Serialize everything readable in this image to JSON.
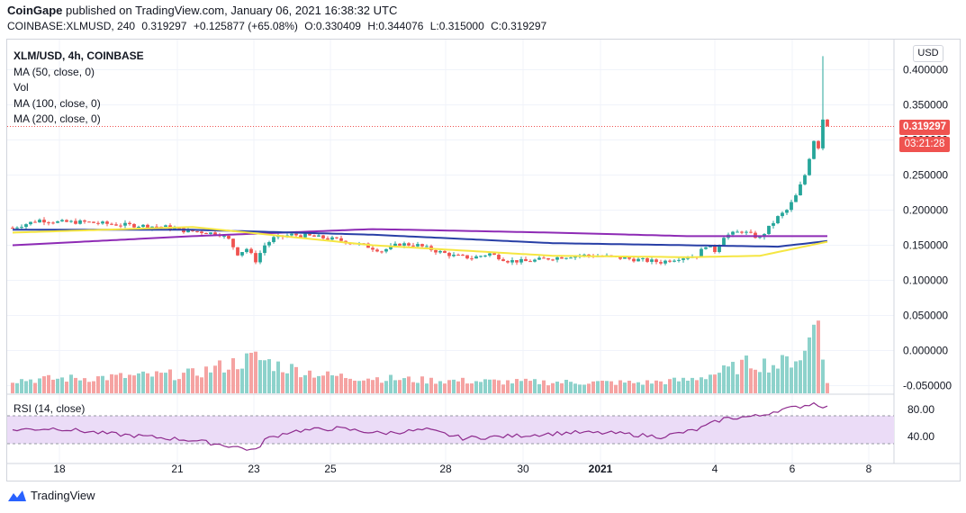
{
  "header": {
    "publisher": "CoinGape",
    "published_text": "published on TradingView.com, January 06, 2021 16:38:32 UTC",
    "symbol_line": "COINBASE:XLMUSD, 240",
    "price": "0.319297",
    "change": "+0.125877 (+65.08%)",
    "open": "O:0.330409",
    "high": "H:0.344076",
    "low": "L:0.315000",
    "close": "C:0.319297"
  },
  "legend": {
    "symbol": "XLM/USD, 4h, COINBASE",
    "ma50": "MA (50, close, 0)",
    "vol": "Vol",
    "ma100": "MA (100, close, 0)",
    "ma200": "MA (200, close, 0)"
  },
  "rsi_label": "RSI (14, close)",
  "currency_button": "USD",
  "last_price_tag": "0.319297",
  "countdown_tag": "03:21:28",
  "footer": {
    "brand": "TradingView"
  },
  "colors": {
    "up": "#26a69a",
    "down": "#ef5350",
    "ma50": "#f5e642",
    "ma100": "#283fa6",
    "ma200": "#8e2bb5",
    "rsi_line": "#8e2b8e",
    "rsi_band": "#ebdcf7"
  },
  "chart_data": {
    "type": "candlestick",
    "symbol": "XLM/USD",
    "interval": "4h",
    "exchange": "COINBASE",
    "price_axis_ticks": [
      "0.400000",
      "0.350000",
      "0.300000",
      "0.250000",
      "0.200000",
      "0.150000",
      "0.100000",
      "0.050000",
      "0.000000",
      "-0.050000"
    ],
    "price_axis_values": [
      0.4,
      0.35,
      0.3,
      0.25,
      0.2,
      0.15,
      0.1,
      0.05,
      0.0,
      -0.05
    ],
    "x_ticks": [
      "18",
      "21",
      "23",
      "25",
      "28",
      "30",
      "2021",
      "4",
      "6",
      "8"
    ],
    "rsi_ticks": [
      "80.00",
      "40.00"
    ],
    "rsi_levels": [
      70,
      30
    ],
    "last_price": 0.319297,
    "anchors_price": [
      [
        0,
        0.175
      ],
      [
        6,
        0.186
      ],
      [
        10,
        0.183
      ],
      [
        16,
        0.183
      ],
      [
        22,
        0.18
      ],
      [
        28,
        0.178
      ],
      [
        34,
        0.176
      ],
      [
        38,
        0.171
      ],
      [
        42,
        0.169
      ],
      [
        46,
        0.166
      ],
      [
        48,
        0.158
      ],
      [
        50,
        0.138
      ],
      [
        52,
        0.145
      ],
      [
        54,
        0.128
      ],
      [
        56,
        0.15
      ],
      [
        58,
        0.16
      ],
      [
        62,
        0.165
      ],
      [
        66,
        0.163
      ],
      [
        72,
        0.158
      ],
      [
        78,
        0.15
      ],
      [
        82,
        0.142
      ],
      [
        86,
        0.152
      ],
      [
        90,
        0.15
      ],
      [
        94,
        0.142
      ],
      [
        98,
        0.135
      ],
      [
        102,
        0.132
      ],
      [
        106,
        0.138
      ],
      [
        110,
        0.128
      ],
      [
        114,
        0.127
      ],
      [
        120,
        0.132
      ],
      [
        126,
        0.136
      ],
      [
        132,
        0.134
      ],
      [
        138,
        0.13
      ],
      [
        144,
        0.126
      ],
      [
        148,
        0.132
      ],
      [
        152,
        0.135
      ],
      [
        154,
        0.15
      ],
      [
        156,
        0.142
      ],
      [
        158,
        0.163
      ],
      [
        162,
        0.17
      ],
      [
        166,
        0.16
      ],
      [
        168,
        0.175
      ],
      [
        170,
        0.19
      ],
      [
        172,
        0.2
      ],
      [
        174,
        0.22
      ],
      [
        176,
        0.25
      ],
      [
        178,
        0.3
      ],
      [
        179,
        0.29
      ],
      [
        180,
        0.33
      ],
      [
        181,
        0.319
      ]
    ],
    "ma50": [
      [
        0,
        0.168
      ],
      [
        40,
        0.176
      ],
      [
        80,
        0.15
      ],
      [
        120,
        0.135
      ],
      [
        150,
        0.133
      ],
      [
        166,
        0.135
      ],
      [
        181,
        0.155
      ]
    ],
    "ma100": [
      [
        0,
        0.172
      ],
      [
        40,
        0.172
      ],
      [
        80,
        0.165
      ],
      [
        120,
        0.153
      ],
      [
        150,
        0.15
      ],
      [
        170,
        0.148
      ],
      [
        181,
        0.156
      ]
    ],
    "ma200": [
      [
        0,
        0.15
      ],
      [
        40,
        0.163
      ],
      [
        80,
        0.173
      ],
      [
        120,
        0.168
      ],
      [
        150,
        0.163
      ],
      [
        181,
        0.163
      ]
    ],
    "rsi_anchors": [
      [
        0,
        50
      ],
      [
        10,
        52
      ],
      [
        20,
        45
      ],
      [
        30,
        40
      ],
      [
        40,
        35
      ],
      [
        50,
        25
      ],
      [
        54,
        20
      ],
      [
        56,
        36
      ],
      [
        62,
        48
      ],
      [
        72,
        52
      ],
      [
        82,
        45
      ],
      [
        92,
        50
      ],
      [
        100,
        38
      ],
      [
        108,
        40
      ],
      [
        116,
        43
      ],
      [
        124,
        46
      ],
      [
        134,
        45
      ],
      [
        144,
        40
      ],
      [
        152,
        50
      ],
      [
        158,
        66
      ],
      [
        166,
        70
      ],
      [
        170,
        78
      ],
      [
        174,
        82
      ],
      [
        178,
        88
      ],
      [
        181,
        82
      ]
    ],
    "volume_anchors": [
      [
        0,
        0.15
      ],
      [
        20,
        0.18
      ],
      [
        40,
        0.22
      ],
      [
        50,
        0.35
      ],
      [
        54,
        0.4
      ],
      [
        60,
        0.3
      ],
      [
        70,
        0.2
      ],
      [
        90,
        0.15
      ],
      [
        110,
        0.13
      ],
      [
        140,
        0.12
      ],
      [
        150,
        0.15
      ],
      [
        158,
        0.25
      ],
      [
        164,
        0.35
      ],
      [
        170,
        0.32
      ],
      [
        176,
        0.45
      ],
      [
        179,
        0.95
      ],
      [
        181,
        0.1
      ]
    ],
    "xlabel": "",
    "ylabel": ""
  }
}
